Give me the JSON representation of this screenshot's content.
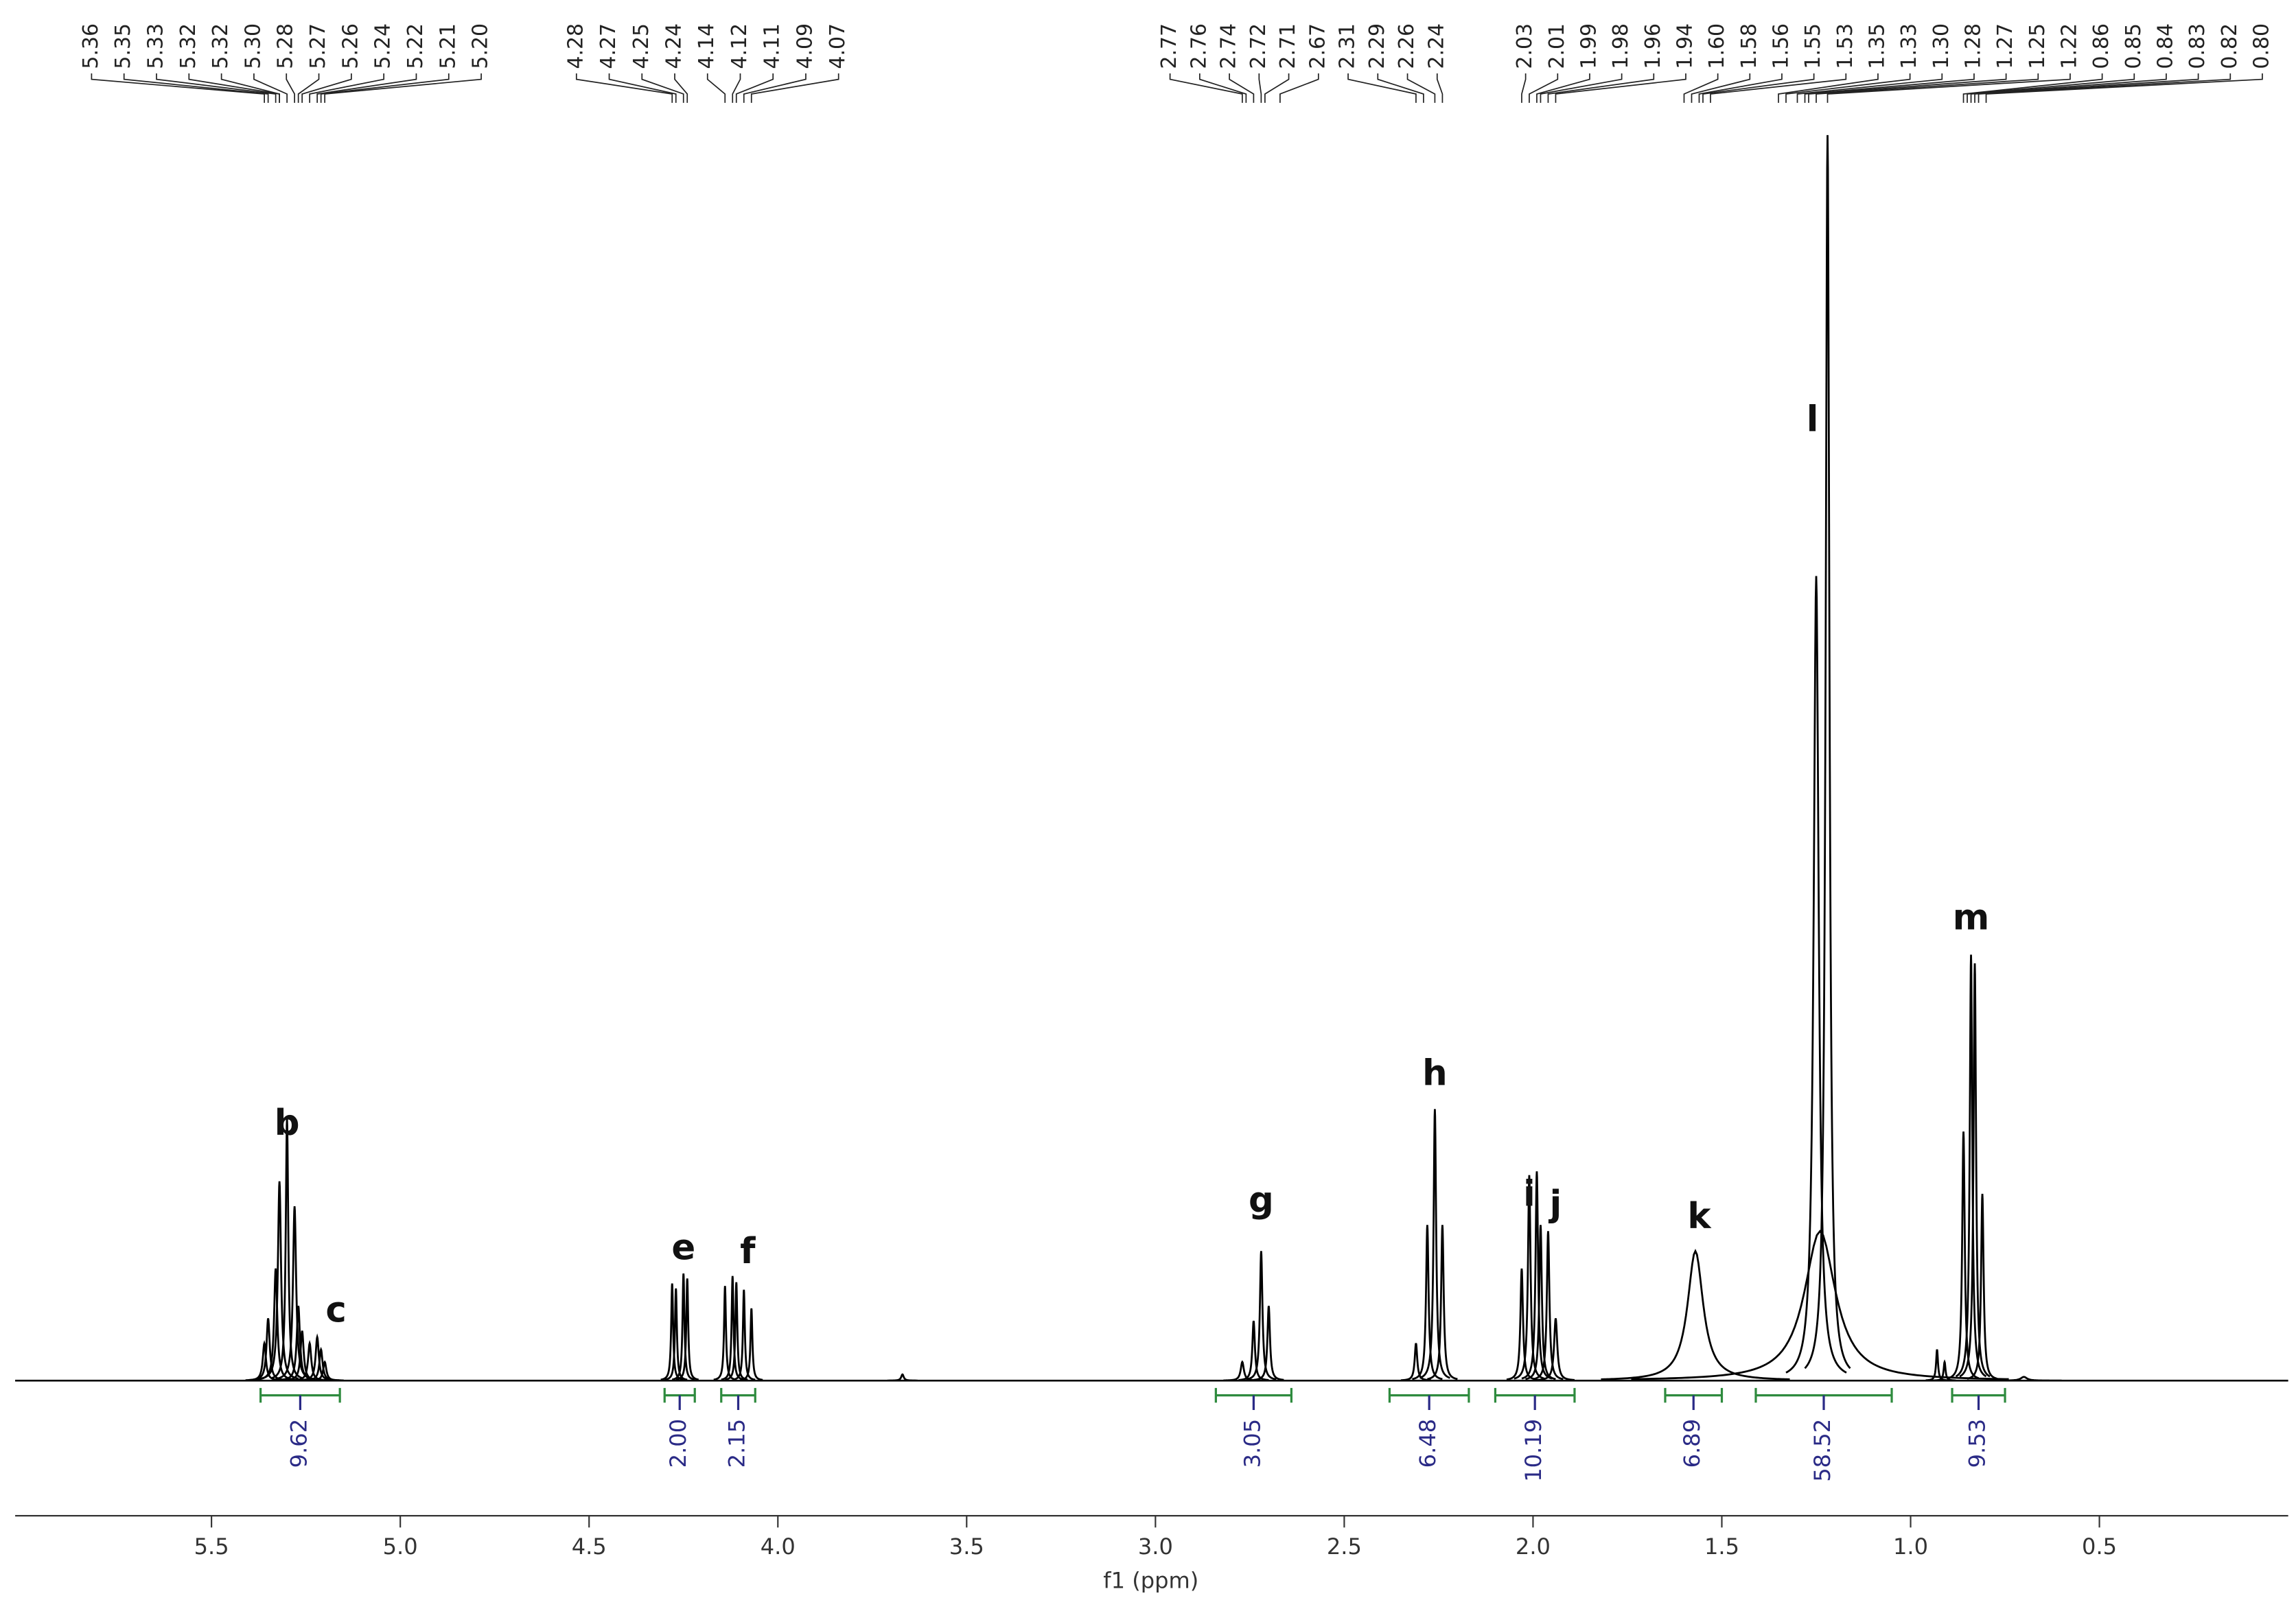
{
  "chart_data": {
    "type": "nmr",
    "x_label": "f1 (ppm)",
    "xlim": [
      6.02,
      0.0
    ],
    "ylim": [
      0,
      100
    ],
    "xticks": [
      5.5,
      {
        "value": 5,
        "label": "5.0"
      },
      4.5,
      {
        "value": 4,
        "label": "4.0"
      },
      3.5,
      {
        "value": 3,
        "label": "3.0"
      },
      2.5,
      {
        "value": 2,
        "label": "2.0"
      },
      1.5,
      {
        "value": 1,
        "label": "1.0"
      },
      0.5
    ],
    "color": "#000000",
    "peak_list": [
      [
        5.36,
        5.35,
        5.33,
        5.32,
        5.32,
        {
          "value": 5.3,
          "label": "5.30"
        },
        5.28,
        5.27,
        5.26,
        5.24,
        5.22,
        5.21,
        {
          "value": 5.2,
          "label": "5.20"
        }
      ],
      [
        4.28,
        4.27,
        4.25,
        4.24,
        4.14,
        4.12,
        4.11,
        4.09,
        4.07
      ],
      [
        2.77,
        2.76,
        2.74,
        2.72,
        2.71,
        2.67,
        2.31,
        2.29,
        2.26,
        2.24
      ],
      [
        2.03,
        2.01,
        1.99,
        1.98,
        1.96,
        1.94,
        {
          "value": 1.6,
          "label": "1.60"
        },
        1.58,
        1.56,
        1.55,
        1.53,
        1.35,
        1.33,
        {
          "value": 1.3,
          "label": "1.30"
        },
        1.28,
        1.27,
        1.25,
        1.22,
        0.86,
        0.85,
        0.84,
        0.83,
        0.82,
        {
          "value": 0.8,
          "label": "0.80"
        }
      ]
    ],
    "peaks": [
      {
        "ppm": 5.36,
        "height": 3,
        "width": 0.005
      },
      {
        "ppm": 5.35,
        "height": 5,
        "width": 0.005
      },
      {
        "ppm": 5.33,
        "height": 9,
        "width": 0.005
      },
      {
        "ppm": 5.32,
        "height": 16,
        "width": 0.005
      },
      {
        "ppm": 5.3,
        "height": 21,
        "width": 0.004
      },
      {
        "ppm": 5.28,
        "height": 14,
        "width": 0.005
      },
      {
        "ppm": 5.27,
        "height": 6,
        "width": 0.005
      },
      {
        "ppm": 5.26,
        "height": 4,
        "width": 0.005
      },
      {
        "ppm": 5.24,
        "height": 3,
        "width": 0.005
      },
      {
        "ppm": 5.22,
        "height": 3.5,
        "width": 0.005
      },
      {
        "ppm": 5.21,
        "height": 2.5,
        "width": 0.005
      },
      {
        "ppm": 5.2,
        "height": 1.5,
        "width": 0.005
      },
      {
        "ppm": 4.28,
        "height": 7.8,
        "width": 0.003
      },
      {
        "ppm": 4.27,
        "height": 7.4,
        "width": 0.003
      },
      {
        "ppm": 4.25,
        "height": 8.6,
        "width": 0.003
      },
      {
        "ppm": 4.24,
        "height": 8.2,
        "width": 0.003
      },
      {
        "ppm": 4.14,
        "height": 7.6,
        "width": 0.003
      },
      {
        "ppm": 4.12,
        "height": 8.4,
        "width": 0.003
      },
      {
        "ppm": 4.11,
        "height": 7.9,
        "width": 0.003
      },
      {
        "ppm": 4.09,
        "height": 7.3,
        "width": 0.003
      },
      {
        "ppm": 4.07,
        "height": 5.8,
        "width": 0.003
      },
      {
        "ppm": 3.67,
        "height": 0.5,
        "width": 0.004
      },
      {
        "ppm": 2.77,
        "height": 1.5,
        "width": 0.005
      },
      {
        "ppm": 2.74,
        "height": 4.8,
        "width": 0.004
      },
      {
        "ppm": 2.72,
        "height": 10.4,
        "width": 0.004
      },
      {
        "ppm": 2.7,
        "height": 6,
        "width": 0.004
      },
      {
        "ppm": 2.31,
        "height": 3,
        "width": 0.004
      },
      {
        "ppm": 2.28,
        "height": 12.5,
        "width": 0.004
      },
      {
        "ppm": 2.26,
        "height": 21.8,
        "width": 0.004
      },
      {
        "ppm": 2.24,
        "height": 12.5,
        "width": 0.004
      },
      {
        "ppm": 2.03,
        "height": 9,
        "width": 0.004
      },
      {
        "ppm": 2.01,
        "height": 16.5,
        "width": 0.004
      },
      {
        "ppm": 1.99,
        "height": 16.8,
        "width": 0.004
      },
      {
        "ppm": 1.98,
        "height": 12.5,
        "width": 0.004
      },
      {
        "ppm": 1.96,
        "height": 12,
        "width": 0.004
      },
      {
        "ppm": 1.94,
        "height": 5,
        "width": 0.005
      },
      {
        "ppm": 1.57,
        "height": 10.4,
        "width": 0.025
      },
      {
        "ppm": 1.25,
        "height": 64.6,
        "width": 0.008
      },
      {
        "ppm": 1.22,
        "height": 100,
        "width": 0.006
      },
      {
        "ppm": 1.24,
        "height": 12,
        "width": 0.05
      },
      {
        "ppm": 0.93,
        "height": 2.5,
        "width": 0.003
      },
      {
        "ppm": 0.91,
        "height": 1.5,
        "width": 0.003
      },
      {
        "ppm": 0.86,
        "height": 20,
        "width": 0.004
      },
      {
        "ppm": 0.84,
        "height": 34.2,
        "width": 0.004
      },
      {
        "ppm": 0.83,
        "height": 33.5,
        "width": 0.004
      },
      {
        "ppm": 0.81,
        "height": 15,
        "width": 0.004
      },
      {
        "ppm": 0.7,
        "height": 0.3,
        "width": 0.01
      }
    ],
    "annotations": [
      {
        "text": "b",
        "x": 5.3,
        "y": 20.5
      },
      {
        "text": "c",
        "x": 5.17,
        "y": 5.5
      },
      {
        "text": "e",
        "x": 4.25,
        "y": 10.5
      },
      {
        "text": "f",
        "x": 4.08,
        "y": 10.2
      },
      {
        "text": "g",
        "x": 2.72,
        "y": 14.3
      },
      {
        "text": "h",
        "x": 2.26,
        "y": 24.5
      },
      {
        "text": "i",
        "x": 2.01,
        "y": 14.8
      },
      {
        "text": "j",
        "x": 1.94,
        "y": 14.0
      },
      {
        "text": "k",
        "x": 1.56,
        "y": 13.0
      },
      {
        "text": "l",
        "x": 1.26,
        "y": 77
      },
      {
        "text": "m",
        "x": 0.84,
        "y": 37
      }
    ],
    "integrals": [
      {
        "value": 9.62,
        "from": 5.37,
        "to": 5.16
      },
      {
        "value": 2,
        "label": "2.00",
        "from": 4.3,
        "to": 4.22
      },
      {
        "value": 2.15,
        "from": 4.15,
        "to": 4.06
      },
      {
        "value": 3.05,
        "from": 2.84,
        "to": 2.64
      },
      {
        "value": 6.48,
        "from": 2.38,
        "to": 2.17
      },
      {
        "value": 10.19,
        "from": 2.1,
        "to": 1.89
      },
      {
        "value": 6.89,
        "from": 1.65,
        "to": 1.5
      },
      {
        "value": 58.52,
        "from": 1.41,
        "to": 1.05
      },
      {
        "value": 9.53,
        "from": 0.89,
        "to": 0.75
      }
    ],
    "integral_color": "#2e8b3e",
    "integral_label_color": "#2a2a86"
  }
}
